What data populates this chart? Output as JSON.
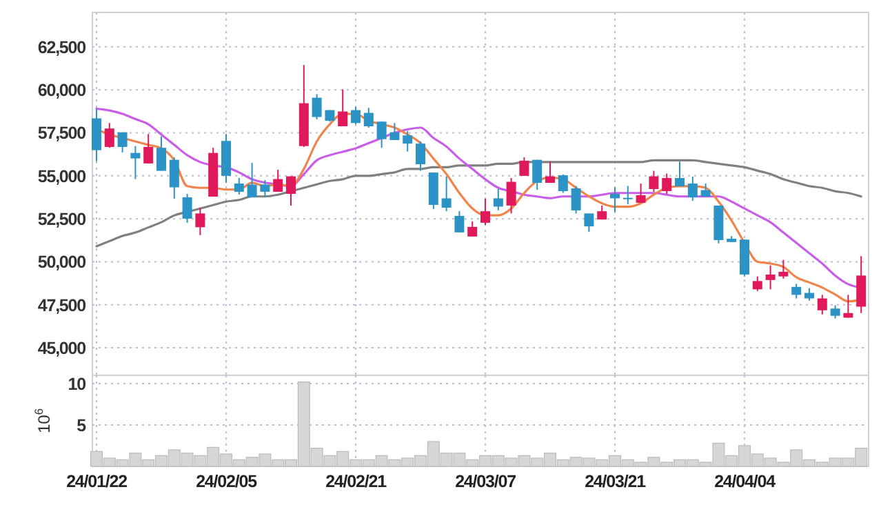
{
  "chart_data": [
    {
      "type": "candlestick",
      "categories": [
        null,
        null,
        null,
        null,
        null,
        null,
        null,
        null,
        null,
        null,
        null,
        null,
        null,
        null,
        null,
        null,
        null,
        null,
        null,
        null,
        null,
        null,
        null,
        null,
        null,
        null,
        null,
        null,
        null,
        null,
        null,
        null,
        null,
        null,
        null,
        null,
        null,
        null,
        null,
        null,
        null,
        null,
        null,
        null,
        null,
        null,
        null,
        null,
        null,
        null,
        null,
        null,
        null,
        null,
        null,
        null,
        null,
        null,
        null,
        null
      ],
      "ohlc": [
        [
          58340,
          58900,
          55850,
          56490
        ],
        [
          56680,
          58070,
          56630,
          57750
        ],
        [
          57530,
          57530,
          56360,
          56680
        ],
        [
          56330,
          56730,
          54810,
          56010
        ],
        [
          55720,
          57430,
          55720,
          56680
        ],
        [
          56630,
          57290,
          55290,
          55290
        ],
        [
          55930,
          56070,
          53670,
          54330
        ],
        [
          53750,
          53950,
          52270,
          52510
        ],
        [
          52010,
          53150,
          51550,
          52810
        ],
        [
          53790,
          56630,
          53790,
          56330
        ],
        [
          57030,
          57430,
          54590,
          55000
        ],
        [
          54550,
          54870,
          53910,
          54070
        ],
        [
          54490,
          55750,
          53750,
          53750
        ],
        [
          54490,
          54750,
          53750,
          54070
        ],
        [
          54070,
          55350,
          54070,
          54810
        ],
        [
          53950,
          54970,
          53270,
          54970
        ],
        [
          56730,
          61440,
          56680,
          59220
        ],
        [
          59540,
          59750,
          58280,
          58420
        ],
        [
          58820,
          58820,
          58150,
          58200
        ],
        [
          57880,
          60020,
          57880,
          58740
        ],
        [
          58820,
          59000,
          58000,
          58070
        ],
        [
          58660,
          58950,
          57800,
          57880
        ],
        [
          58150,
          58150,
          56630,
          57130
        ],
        [
          57530,
          58070,
          57080,
          57080
        ],
        [
          57350,
          57610,
          56410,
          56870
        ],
        [
          56870,
          57000,
          55290,
          55670
        ],
        [
          55190,
          55190,
          53070,
          53310
        ],
        [
          53690,
          54950,
          52940,
          53150
        ],
        [
          52670,
          52940,
          51710,
          51710
        ],
        [
          51470,
          52350,
          51470,
          52030
        ],
        [
          52270,
          53690,
          52140,
          52940
        ],
        [
          53690,
          54230,
          52990,
          53210
        ],
        [
          53270,
          54870,
          52810,
          54650
        ],
        [
          55000,
          56070,
          55000,
          55880
        ],
        [
          55930,
          55930,
          54190,
          54590
        ],
        [
          54590,
          55830,
          54590,
          54970
        ],
        [
          55030,
          55080,
          54010,
          54110
        ],
        [
          54270,
          54410,
          52810,
          52990
        ],
        [
          52810,
          52810,
          51740,
          52060
        ],
        [
          52460,
          53270,
          52460,
          52940
        ],
        [
          53950,
          54330,
          52890,
          53690
        ],
        [
          53720,
          54410,
          53350,
          53690
        ],
        [
          53430,
          54550,
          53430,
          53870
        ],
        [
          54230,
          55290,
          54070,
          54970
        ],
        [
          54110,
          55130,
          53950,
          54870
        ],
        [
          54870,
          55830,
          54390,
          54390
        ],
        [
          54550,
          54950,
          53550,
          53750
        ],
        [
          54170,
          54550,
          53790,
          53790
        ],
        [
          53270,
          53270,
          51070,
          51260
        ],
        [
          51340,
          51490,
          51150,
          51150
        ],
        [
          51290,
          51290,
          49150,
          49260
        ],
        [
          48400,
          49150,
          48300,
          48880
        ],
        [
          48940,
          49790,
          48400,
          49260
        ],
        [
          49150,
          50110,
          49020,
          49420
        ],
        [
          48540,
          48720,
          47870,
          48080
        ],
        [
          48190,
          48460,
          47740,
          47870
        ],
        [
          47180,
          48080,
          46940,
          47870
        ],
        [
          47280,
          47470,
          46700,
          46860
        ],
        [
          46750,
          48080,
          46750,
          47020
        ],
        [
          47390,
          50330,
          47020,
          49200
        ]
      ],
      "colors": [
        "#2b93c5",
        "#e0195a",
        "#2b93c5",
        "#2b93c5",
        "#e0195a",
        "#2b93c5",
        "#2b93c5",
        "#2b93c5",
        "#e0195a",
        "#e0195a",
        "#2b93c5",
        "#2b93c5",
        "#2b93c5",
        "#2b93c5",
        "#e0195a",
        "#e0195a",
        "#e0195a",
        "#2b93c5",
        "#2b93c5",
        "#e0195a",
        "#2b93c5",
        "#2b93c5",
        "#2b93c5",
        "#2b93c5",
        "#2b93c5",
        "#2b93c5",
        "#2b93c5",
        "#2b93c5",
        "#2b93c5",
        "#e0195a",
        "#e0195a",
        "#2b93c5",
        "#e0195a",
        "#e0195a",
        "#2b93c5",
        "#e0195a",
        "#2b93c5",
        "#2b93c5",
        "#2b93c5",
        "#e0195a",
        "#2b93c5",
        "#2b93c5",
        "#e0195a",
        "#e0195a",
        "#e0195a",
        "#2b93c5",
        "#2b93c5",
        "#2b93c5",
        "#2b93c5",
        "#2b93c5",
        "#2b93c5",
        "#e0195a",
        "#e0195a",
        "#e0195a",
        "#2b93c5",
        "#2b93c5",
        "#e0195a",
        "#2b93c5",
        "#e0195a",
        "#e0195a"
      ],
      "series": [
        {
          "type": "line",
          "color": "#808080",
          "values": [
            50900,
            51200,
            51500,
            51700,
            52000,
            52300,
            52700,
            52900,
            53100,
            53300,
            53500,
            53600,
            53800,
            53800,
            53900,
            54100,
            54300,
            54500,
            54700,
            54800,
            55000,
            55000,
            55100,
            55200,
            55400,
            55400,
            55500,
            55500,
            55600,
            55600,
            55600,
            55700,
            55700,
            55800,
            55800,
            55800,
            55800,
            55800,
            55800,
            55800,
            55800,
            55800,
            55800,
            55900,
            55900,
            55900,
            55900,
            55800,
            55700,
            55600,
            55500,
            55300,
            55100,
            54800,
            54600,
            54400,
            54300,
            54100,
            54000,
            53800
          ]
        },
        {
          "type": "line",
          "color": "#c95de8",
          "values": [
            58900,
            58800,
            58600,
            58300,
            58000,
            57400,
            56800,
            56200,
            55800,
            55600,
            55500,
            55200,
            54800,
            54600,
            54500,
            54400,
            55100,
            55900,
            56200,
            56400,
            56600,
            56900,
            57200,
            57500,
            57700,
            57800,
            57200,
            56700,
            56000,
            55400,
            54800,
            54300,
            54100,
            53900,
            53800,
            53700,
            53800,
            53800,
            53800,
            53900,
            54000,
            54000,
            54000,
            54000,
            53900,
            53800,
            53800,
            53800,
            53800,
            53500,
            53100,
            52700,
            52300,
            51700,
            51100,
            50500,
            49900,
            49200,
            48700,
            48500
          ]
        },
        {
          "type": "line",
          "color": "#f0844a",
          "values": [
            57700,
            57400,
            57200,
            57000,
            56800,
            56600,
            55900,
            54400,
            54300,
            54300,
            54200,
            54200,
            54600,
            54400,
            54500,
            54400,
            55400,
            57000,
            58000,
            58600,
            58600,
            58200,
            58000,
            57800,
            57400,
            56900,
            56000,
            55100,
            54000,
            53100,
            52700,
            52700,
            53100,
            54000,
            54700,
            54900,
            54800,
            54300,
            53800,
            53400,
            53200,
            53200,
            53400,
            53900,
            54300,
            54400,
            54400,
            54300,
            53500,
            52400,
            51100,
            50000,
            49900,
            49700,
            49100,
            48800,
            48500,
            48100,
            47700,
            47800
          ]
        }
      ],
      "ylim": [
        43400,
        64500
      ],
      "yticks": [
        {
          "value": 45000,
          "label": "45,000"
        },
        {
          "value": 47500,
          "label": "47,500"
        },
        {
          "value": 50000,
          "label": "50,000"
        },
        {
          "value": 52500,
          "label": "52,500"
        },
        {
          "value": 55000,
          "label": "55,000"
        },
        {
          "value": 57500,
          "label": "57,500"
        },
        {
          "value": 60000,
          "label": "60,000"
        },
        {
          "value": 62500,
          "label": "62,500"
        }
      ],
      "grid": true,
      "tick_labels": "y"
    },
    {
      "type": "bar",
      "categories": [
        "24/01/22",
        null,
        null,
        null,
        null,
        null,
        null,
        null,
        null,
        null,
        "24/02/05",
        null,
        null,
        null,
        null,
        null,
        null,
        null,
        null,
        null,
        "24/02/21",
        null,
        null,
        null,
        null,
        null,
        null,
        null,
        null,
        null,
        "24/03/07",
        null,
        null,
        null,
        null,
        null,
        null,
        null,
        null,
        null,
        "24/03/21",
        null,
        null,
        null,
        null,
        null,
        null,
        null,
        null,
        null,
        "24/04/04",
        null,
        null,
        null,
        null,
        null,
        null,
        null,
        null,
        null
      ],
      "values": [
        1.8,
        1.0,
        0.8,
        1.6,
        0.8,
        1.3,
        2.0,
        1.6,
        1.3,
        2.3,
        1.5,
        0.8,
        1.1,
        1.5,
        0.8,
        0.8,
        10.2,
        2.2,
        1.3,
        1.8,
        0.8,
        0.8,
        1.3,
        0.8,
        1.0,
        1.3,
        3.0,
        1.6,
        1.6,
        0.8,
        1.3,
        1.3,
        1.0,
        1.3,
        1.0,
        1.6,
        0.8,
        1.1,
        1.0,
        0.8,
        1.3,
        0.8,
        0.5,
        1.1,
        0.5,
        0.8,
        0.8,
        0.5,
        2.8,
        1.3,
        2.5,
        1.5,
        1.0,
        0.5,
        2.0,
        0.8,
        0.5,
        1.0,
        1.0,
        2.2
      ],
      "color": "#d6d6d6",
      "ylabel": "10$^{6}$",
      "ylim": [
        0,
        11
      ],
      "yticks": [
        5,
        10
      ],
      "grid": true
    }
  ]
}
